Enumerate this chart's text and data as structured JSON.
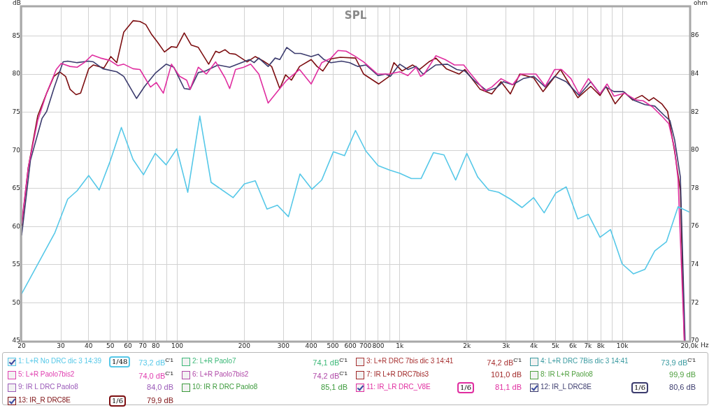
{
  "chart_data": {
    "type": "line",
    "title": "SPL",
    "xlabel": "Hz",
    "ylabel": "dB",
    "y2label": "ohm",
    "log": "x",
    "grid": true,
    "legend": "bottom",
    "marker": "none",
    "line_style": "solid",
    "xlim": [
      20,
      20000
    ],
    "ylim": [
      45,
      88.8
    ],
    "y2lim": [
      70,
      87.5
    ],
    "xticks": [
      20,
      30,
      40,
      50,
      60,
      70,
      80,
      {
        "value": 90,
        "label": null
      },
      100,
      200,
      300,
      400,
      500,
      600,
      700,
      800,
      {
        "value": 900,
        "label": null
      },
      {
        "value": 1000,
        "label": "1k"
      },
      {
        "value": 2000,
        "label": "2k"
      },
      {
        "value": 3000,
        "label": "3k"
      },
      {
        "value": 4000,
        "label": "4k"
      },
      {
        "value": 5000,
        "label": "5k"
      },
      {
        "value": 6000,
        "label": "6k"
      },
      {
        "value": 7000,
        "label": "7k"
      },
      {
        "value": 8000,
        "label": "8k"
      },
      {
        "value": 9000,
        "label": null
      },
      {
        "value": 10000,
        "label": "10k"
      },
      {
        "value": 20000,
        "label": "20,0k"
      }
    ],
    "yticks": [
      45,
      50,
      55,
      60,
      65,
      70,
      75,
      80,
      85
    ],
    "y2ticks": [
      70,
      72,
      74,
      76,
      78,
      80,
      82,
      84,
      86
    ],
    "series": [
      {
        "name": "1: L+R No DRC dic 3 14:39",
        "color": "#56c8e8",
        "x": [
          20,
          28.2,
          32.2,
          35.5,
          40,
          44.6,
          49.7,
          56.1,
          63.3,
          70.5,
          79.6,
          89.1,
          99.5,
          111.5,
          126.3,
          141.9,
          178.3,
          200.2,
          224.2,
          253,
          281.8,
          315.8,
          356,
          402.6,
          445.7,
          502.6,
          564,
          632,
          704,
          798,
          901,
          999,
          1126,
          1246,
          1416,
          1579,
          1781,
          1999,
          2238,
          2507,
          2780,
          3138,
          3538,
          3992,
          4450,
          5018,
          5592,
          6307,
          7031,
          7931,
          8841,
          9974,
          11196,
          12628,
          13975,
          15763,
          17780,
          20000
        ],
        "values": [
          51.2,
          59.2,
          63.6,
          64.7,
          66.7,
          64.8,
          68.4,
          73.0,
          68.8,
          66.8,
          69.6,
          68.1,
          70.2,
          64.5,
          74.5,
          65.8,
          63.8,
          65.6,
          66.0,
          62.3,
          62.8,
          61.3,
          66.9,
          64.9,
          66.1,
          69.8,
          69.3,
          72.6,
          69.9,
          68.0,
          67.4,
          67.0,
          66.3,
          66.3,
          69.7,
          69.4,
          66.1,
          69.6,
          66.5,
          64.8,
          64.5,
          63.6,
          62.5,
          63.8,
          61.8,
          64.4,
          65.2,
          61.0,
          61.6,
          58.6,
          59.6,
          55.1,
          53.8,
          54.4,
          56.8,
          58.0,
          62.6,
          61.9
        ]
      },
      {
        "name": "2: L+R Paolo7",
        "color": "#3cb878"
      },
      {
        "name": "3: L+R DRC 7bis dic 3 14:41",
        "color": "#a83232"
      },
      {
        "name": "4: L+R DRC 7Bis dic 3 14:41",
        "color": "#3a9aa0"
      },
      {
        "name": "5: L+R Paolo7bis2",
        "color": "#e040b0"
      },
      {
        "name": "6: L+R Paolo7bis2",
        "color": "#b04aa8"
      },
      {
        "name": "7: IR L+R DRC7bis3",
        "color": "#a02828"
      },
      {
        "name": "8: IR L+R Paolo8",
        "color": "#50a040"
      },
      {
        "name": "9: IR L DRC Paolo8",
        "color": "#9a5ab8"
      },
      {
        "name": "10: IR R DRC Paolo8",
        "color": "#3c9a3c"
      },
      {
        "name": "11: IR_LR DRC_V8E",
        "color": "#e02ea0",
        "x": [
          20,
          21.4,
          23.6,
          25.9,
          28.6,
          30.1,
          33,
          35.5,
          38.2,
          41.5,
          45.2,
          49.7,
          54.1,
          57.5,
          63.3,
          68,
          75.8,
          80.5,
          86.6,
          94.2,
          102.5,
          110.2,
          114.2,
          124.3,
          135.2,
          148.8,
          163.9,
          172,
          182.7,
          198.8,
          213.7,
          232.5,
          256,
          288.8,
          310.4,
          354.4,
          399.8,
          445.7,
          490.6,
          527.4,
          573.8,
          624.4,
          687.6,
          794,
          896,
          999,
          1087,
          1182,
          1240,
          1286,
          1451,
          1598,
          1760,
          1937,
          2033,
          2406,
          2588,
          2849,
          3213,
          3496,
          4090,
          4504,
          4960,
          5332,
          5870,
          6386,
          7031,
          7931,
          8528,
          9168,
          10218,
          11520,
          12388,
          13646,
          15020,
          16150,
          17154,
          17780,
          18978
        ],
        "values": [
          60.4,
          67.7,
          73.9,
          77.5,
          80.6,
          81.4,
          81.0,
          80.9,
          81.5,
          82.5,
          82.1,
          81.8,
          81.1,
          81.3,
          80.7,
          80.6,
          78.3,
          78.9,
          77.5,
          81.3,
          79.7,
          79.2,
          78.0,
          80.9,
          80.0,
          81.6,
          79.5,
          78.1,
          80.6,
          80.9,
          81.3,
          80.0,
          76.2,
          78.1,
          79.2,
          80.6,
          78.7,
          81.5,
          82.1,
          83.1,
          83.0,
          82.4,
          81.6,
          80.0,
          80.0,
          80.3,
          79.8,
          80.9,
          79.7,
          80.0,
          82.4,
          81.9,
          81.2,
          81.2,
          80.4,
          77.8,
          78.3,
          79.4,
          78.6,
          80.0,
          80.0,
          78.4,
          80.6,
          80.6,
          79.4,
          77.4,
          79.4,
          77.4,
          78.7,
          77.1,
          77.5,
          76.6,
          76.5,
          75.7,
          74.5,
          73.5,
          70.2,
          66.2,
          45
        ]
      },
      {
        "name": "12: IR_L DRC8E",
        "color": "#3c3c6e",
        "x": [
          20,
          21.9,
          24.7,
          25.9,
          27.9,
          30.7,
          32.2,
          35.5,
          40,
          42,
          46.3,
          53.5,
          57.5,
          65.6,
          71.4,
          79.6,
          89.1,
          96.5,
          107.5,
          114.2,
          124.3,
          133.6,
          152.5,
          172,
          182.7,
          211,
          221.4,
          232.5,
          256,
          275.2,
          288.8,
          310.4,
          337.8,
          358.6,
          399.8,
          429.8,
          456.6,
          490.6,
          546.8,
          595,
          647,
          704,
          798,
          864,
          907,
          999,
          1087,
          1182,
          1271,
          1451,
          1637,
          1802,
          1960,
          2186,
          2465,
          2714,
          2918,
          3213,
          3581,
          3992,
          4504,
          4960,
          5592,
          6386,
          7206,
          7931,
          8422,
          9168,
          10094,
          11196,
          12628,
          13975,
          15390,
          16346,
          17154,
          18210,
          19116
        ],
        "values": [
          58.9,
          68.7,
          74.2,
          75.1,
          78.1,
          81.6,
          81.7,
          81.5,
          81.7,
          81.6,
          80.7,
          80.3,
          79.7,
          76.8,
          78.4,
          80.1,
          81.3,
          80.9,
          78.1,
          78.0,
          80.2,
          80.4,
          81.2,
          80.9,
          81.2,
          81.9,
          81.5,
          82.1,
          81.0,
          82.1,
          81.9,
          83.5,
          82.7,
          82.7,
          82.3,
          82.6,
          81.9,
          81.5,
          81.7,
          81.5,
          81.0,
          81.2,
          79.8,
          80.0,
          79.7,
          81.3,
          80.6,
          81.0,
          80.0,
          81.2,
          81.3,
          80.6,
          80.4,
          79.0,
          77.8,
          78.2,
          79.0,
          78.6,
          79.4,
          79.7,
          78.3,
          79.7,
          79.0,
          77.2,
          79.0,
          77.4,
          78.3,
          77.7,
          77.7,
          76.6,
          76.0,
          75.8,
          74.6,
          73.9,
          71.4,
          66.5,
          45
        ]
      },
      {
        "name": "13: IR_R DRC8E",
        "color": "#7d0f12",
        "x": [
          20,
          21.4,
          23.6,
          25.9,
          27.9,
          29.6,
          31.5,
          33,
          35.1,
          36.8,
          40,
          42,
          46.8,
          50.3,
          53.5,
          57.5,
          63.3,
          68,
          72.2,
          76.7,
          81.5,
          87.6,
          94.2,
          99.5,
          107.5,
          115.6,
          124.3,
          138.4,
          148.8,
          154.3,
          163.9,
          172,
          182.7,
          206,
          224.2,
          244,
          265.5,
          288.8,
          306.6,
          325.7,
          354.4,
          399.8,
          424.6,
          451,
          490.6,
          540.4,
          632,
          687.6,
          804,
          896,
          940,
          1023,
          1140,
          1226,
          1350,
          1451,
          1617,
          1846,
          1960,
          2294,
          2588,
          2849,
          3138,
          3456,
          3992,
          4396,
          5268,
          6307,
          7206,
          7931,
          8422,
          9280,
          10218,
          11114,
          12240,
          13156,
          13808,
          15020,
          15956,
          17154,
          18210,
          18978
        ],
        "values": [
          60.1,
          67.7,
          74.5,
          77.5,
          79.7,
          80.3,
          79.7,
          78.0,
          77.3,
          77.5,
          80.7,
          81.2,
          80.8,
          82.3,
          81.5,
          85.5,
          87.0,
          86.9,
          86.5,
          85.2,
          84.2,
          82.9,
          83.6,
          83.5,
          85.4,
          83.8,
          83.5,
          81.3,
          83.0,
          82.8,
          83.2,
          82.7,
          82.6,
          81.6,
          82.3,
          81.7,
          81.0,
          78.1,
          79.9,
          79.2,
          81.0,
          81.9,
          81.0,
          80.4,
          82.0,
          82.2,
          82.1,
          80.0,
          78.7,
          79.7,
          81.5,
          80.4,
          81.2,
          80.6,
          81.6,
          82.1,
          80.7,
          80.0,
          80.6,
          78.0,
          77.4,
          79.0,
          77.4,
          80.0,
          79.5,
          77.7,
          80.6,
          76.9,
          78.4,
          77.2,
          78.4,
          76.1,
          77.6,
          76.6,
          77.2,
          76.5,
          76.9,
          76.1,
          75.1,
          69.9,
          64.7,
          45
        ]
      }
    ],
    "annotations": [
      "73,2 dB$^{C'1}$",
      "74,1 dB$^{C'1}$",
      "74,2 dB$^{C'1}$",
      "73,9 dB$^{C'1}$",
      "74,0 dB$^{C'1}$",
      "74,2 dB$^{C'1}$",
      "101,0 dB",
      "99,9 dB",
      "84,0 dB",
      "85,1 dB",
      "81,1 dB",
      "80,6 dB",
      "79,9 dB",
      "1/48",
      "1/6",
      "1/6",
      "1/6"
    ]
  }
}
